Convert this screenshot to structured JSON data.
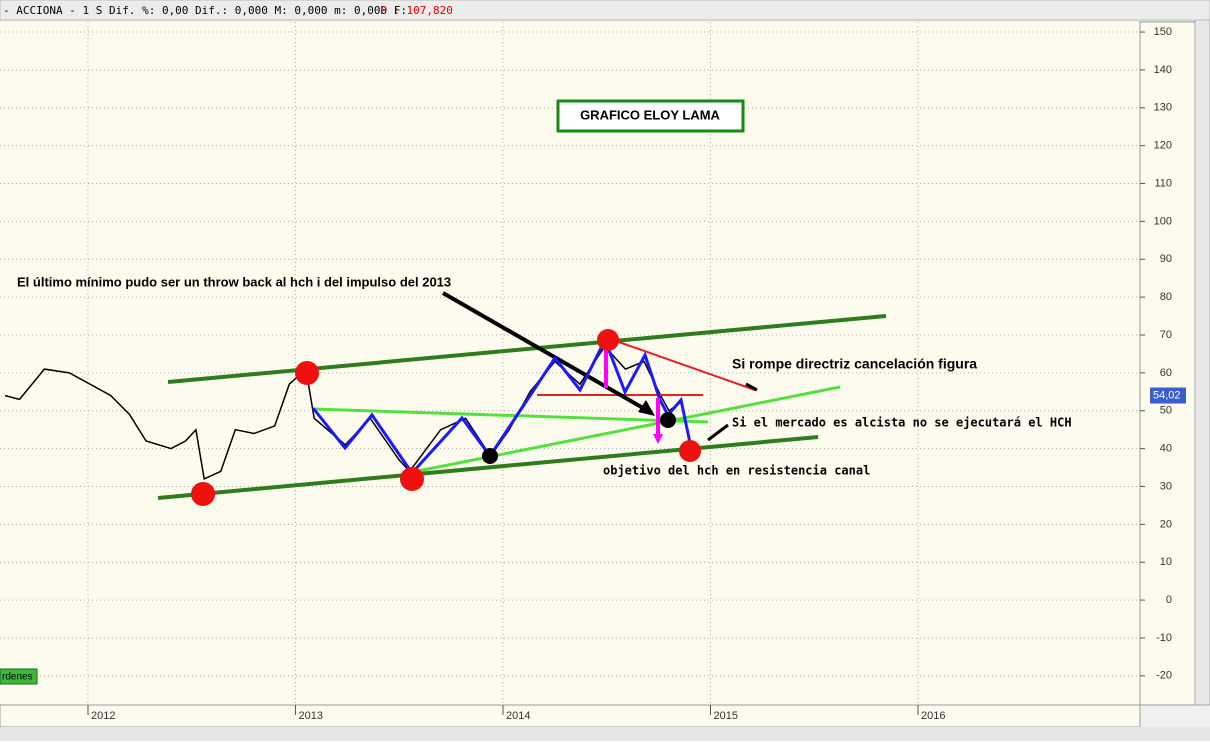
{
  "chart_data": {
    "type": "line",
    "header": "- ACCIONA -  1 S Dif. %: 0,00 Dif.: 0,000 M: 0,000 m: 0,000 F:",
    "price_label": "P : 107,820",
    "title": "GRAFICO ELOY LAMA",
    "annotations": [
      "El último mínimo pudo ser un throw back al hch i del impulso del 2013",
      "Si rompe directriz cancelación figura",
      "Si el mercado es alcista no se ejecutará el HCH",
      "objetivo del hch en resistencia canal"
    ],
    "orders_button": "rdenes",
    "xlim": [
      2011.576,
      2017.07
    ],
    "xticks": [
      2012,
      2013,
      2014,
      2015,
      2016
    ],
    "ylim": [
      -27.7,
      154.5
    ],
    "yticks": [
      150,
      140,
      130,
      120,
      110,
      100,
      90,
      80,
      70,
      60,
      50,
      40,
      30,
      20,
      10,
      0,
      -10,
      -20
    ],
    "grid": true,
    "series": [
      {
        "name": "ACCIONA",
        "color": "#000000",
        "x": [
          2011.6,
          2011.67,
          2011.79,
          2011.91,
          2012.01,
          2012.11,
          2012.2,
          2012.28,
          2012.4,
          2012.47,
          2012.52,
          2012.56,
          2012.64,
          2012.71,
          2012.8,
          2012.9,
          2012.97,
          2013.05,
          2013.09,
          2013.24,
          2013.36,
          2013.5,
          2013.55,
          2013.7,
          2013.82,
          2013.94,
          2014.03,
          2014.13,
          2014.25,
          2014.37,
          2014.49,
          2014.59,
          2014.68,
          2014.76,
          2014.8,
          2014.85
        ],
        "values": [
          54,
          53,
          61,
          60,
          57,
          54,
          49,
          42,
          40,
          42,
          45,
          32,
          34,
          45,
          44,
          46,
          57,
          61,
          48,
          41,
          48,
          37,
          34,
          45,
          48,
          38,
          45,
          55,
          63,
          57,
          67,
          61,
          63,
          54,
          50,
          52
        ]
      }
    ],
    "last_price": {
      "value": 54.02,
      "label": "54,02"
    }
  }
}
